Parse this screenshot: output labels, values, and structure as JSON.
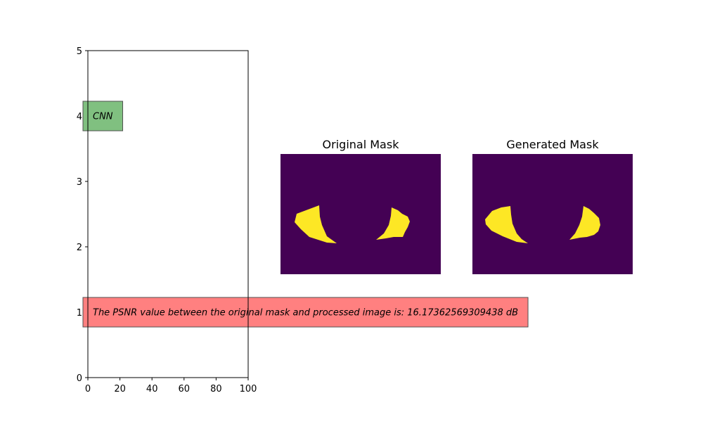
{
  "chart_data": [
    {
      "type": "annotation-axes",
      "xlim": [
        0,
        100
      ],
      "ylim": [
        0,
        5
      ],
      "xticks": [
        0,
        20,
        40,
        60,
        80,
        100
      ],
      "yticks": [
        0,
        1,
        2,
        3,
        4,
        5
      ],
      "grid": false,
      "annotations": [
        {
          "text": "CNN",
          "x": 0,
          "y": 4,
          "box_color": "#80c080"
        },
        {
          "text": "The PSNR value between the original mask and processed image is: 16.17362569309438 dB",
          "x": 0,
          "y": 1,
          "box_color": "#ff8080"
        }
      ]
    },
    {
      "type": "image",
      "title": "Original Mask",
      "colormap": {
        "background": "#440154",
        "foreground": "#fde725"
      }
    },
    {
      "type": "image",
      "title": "Generated Mask",
      "colormap": {
        "background": "#440154",
        "foreground": "#fde725"
      }
    }
  ],
  "psnr_db": 16.17362569309438
}
